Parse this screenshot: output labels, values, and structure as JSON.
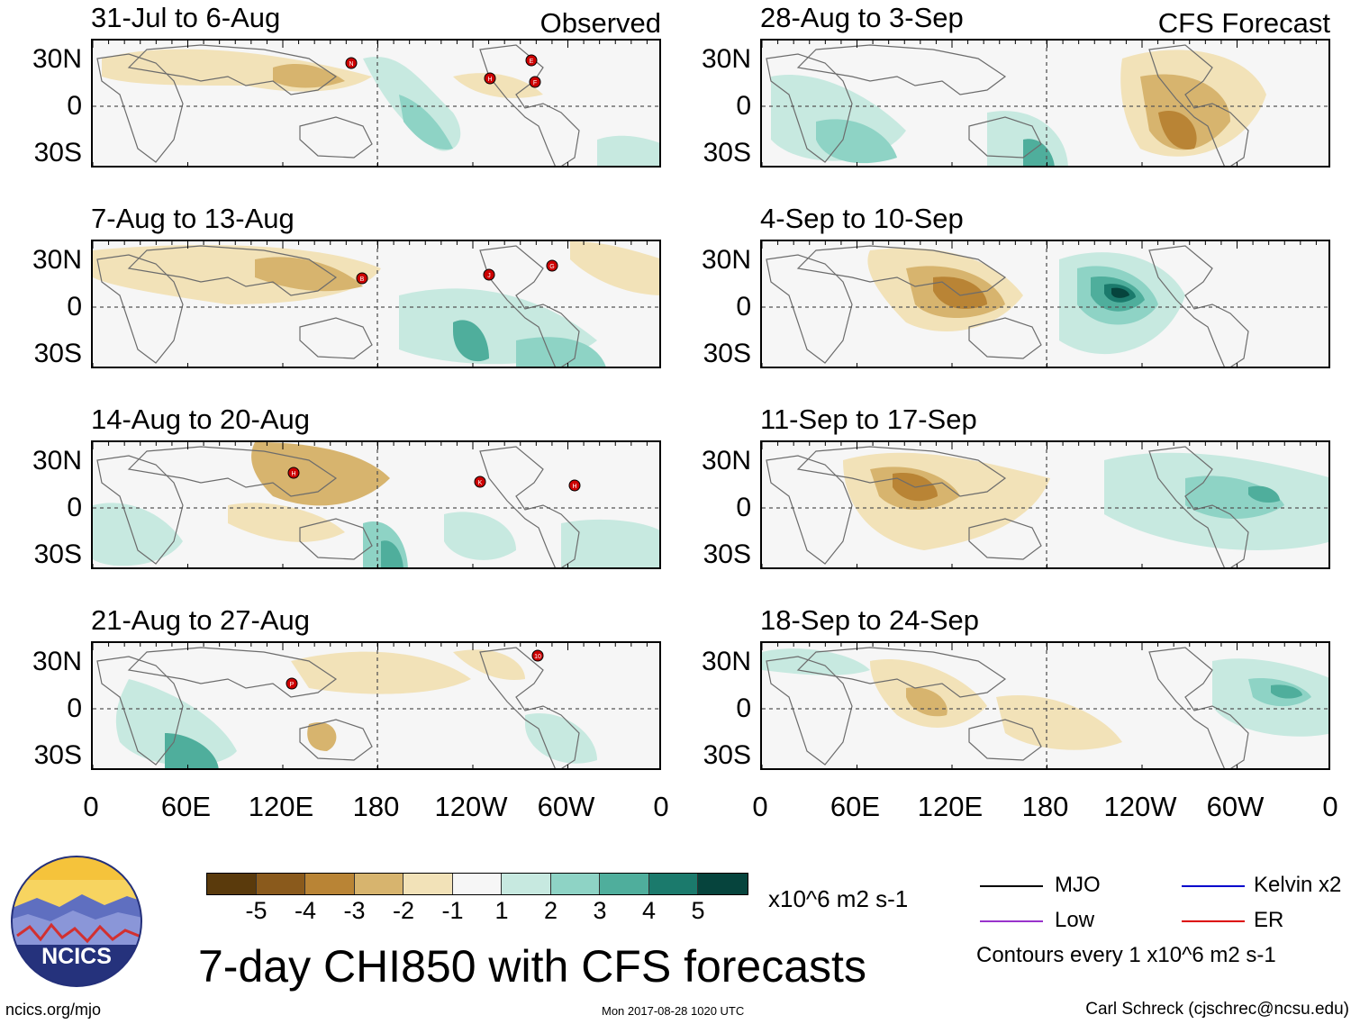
{
  "panels_observed": [
    {
      "title": "31-Jul to 6-Aug",
      "tag": "Observed",
      "storms": [
        "N",
        "E",
        "H",
        "F"
      ]
    },
    {
      "title": "7-Aug to 13-Aug",
      "tag": "",
      "storms": [
        "B",
        "J",
        "G"
      ]
    },
    {
      "title": "14-Aug to 20-Aug",
      "tag": "",
      "storms": [
        "H",
        "K",
        "H"
      ]
    },
    {
      "title": "21-Aug to 27-Aug",
      "tag": "",
      "storms": [
        "10",
        "P"
      ]
    }
  ],
  "panels_forecast": [
    {
      "title": "28-Aug to 3-Sep",
      "tag": "CFS Forecast"
    },
    {
      "title": "4-Sep to 10-Sep",
      "tag": ""
    },
    {
      "title": "11-Sep to 17-Sep",
      "tag": ""
    },
    {
      "title": "18-Sep to 24-Sep",
      "tag": ""
    }
  ],
  "lat_labels": [
    "30N",
    "0",
    "30S"
  ],
  "lon_labels": [
    "0",
    "60E",
    "120E",
    "180",
    "120W",
    "60W",
    "0"
  ],
  "colorbar": {
    "colors": [
      "#5a3a0c",
      "#8a5a1c",
      "#b98435",
      "#d7b46e",
      "#f2e2b8",
      "#f6f6f6",
      "#c7e9e0",
      "#8ed3c5",
      "#4fae9c",
      "#1b7a6c",
      "#06443d"
    ],
    "ticks": [
      "-5",
      "-4",
      "-3",
      "-2",
      "-1",
      "1",
      "2",
      "3",
      "4",
      "5"
    ],
    "units": "x10^6 m2 s-1"
  },
  "title": "7-day CHI850 with CFS forecasts",
  "legend": [
    {
      "label": "MJO",
      "color": "#000000"
    },
    {
      "label": "Kelvin x2",
      "color": "#0000cc"
    },
    {
      "label": "Low",
      "color": "#9933cc"
    },
    {
      "label": "ER",
      "color": "#dd0000"
    }
  ],
  "contours_note": "Contours every 1 x10^6 m2 s-1",
  "logo_text": "NCICS",
  "footer": {
    "left": "ncics.org/mjo",
    "middle": "Mon 2017-08-28 1020 UTC",
    "right": "Carl Schreck (cjschrec@ncsu.edu)"
  },
  "accent_colors": {
    "storm": "#cc0000"
  }
}
